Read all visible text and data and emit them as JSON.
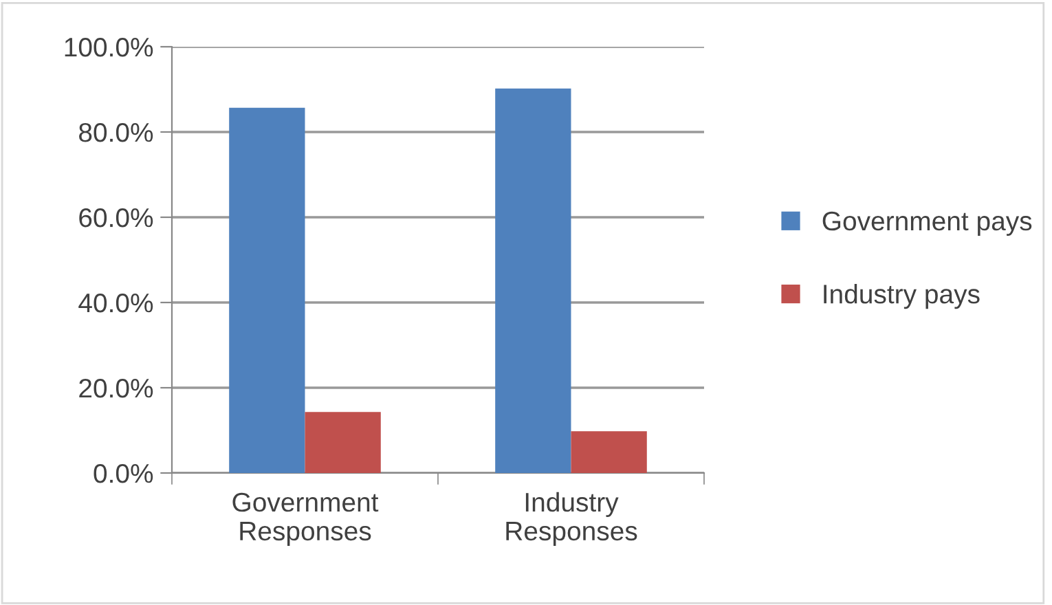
{
  "chart_data": {
    "type": "bar",
    "categories": [
      "Government\nResponses",
      "Industry\nResponses"
    ],
    "series": [
      {
        "name": "Government pays",
        "color": "#4f81bd",
        "values": [
          85.7,
          90.2
        ]
      },
      {
        "name": "Industry pays",
        "color": "#c0504d",
        "values": [
          14.3,
          9.8
        ]
      }
    ],
    "ylim": [
      0,
      100
    ],
    "yticks": [
      {
        "value": 0,
        "label": "0.0%"
      },
      {
        "value": 20,
        "label": "20.0%"
      },
      {
        "value": 40,
        "label": "40.0%"
      },
      {
        "value": 60,
        "label": "60.0%"
      },
      {
        "value": 80,
        "label": "80.0%"
      },
      {
        "value": 100,
        "label": "100.0%"
      }
    ],
    "grid": "y",
    "legend": "right"
  }
}
